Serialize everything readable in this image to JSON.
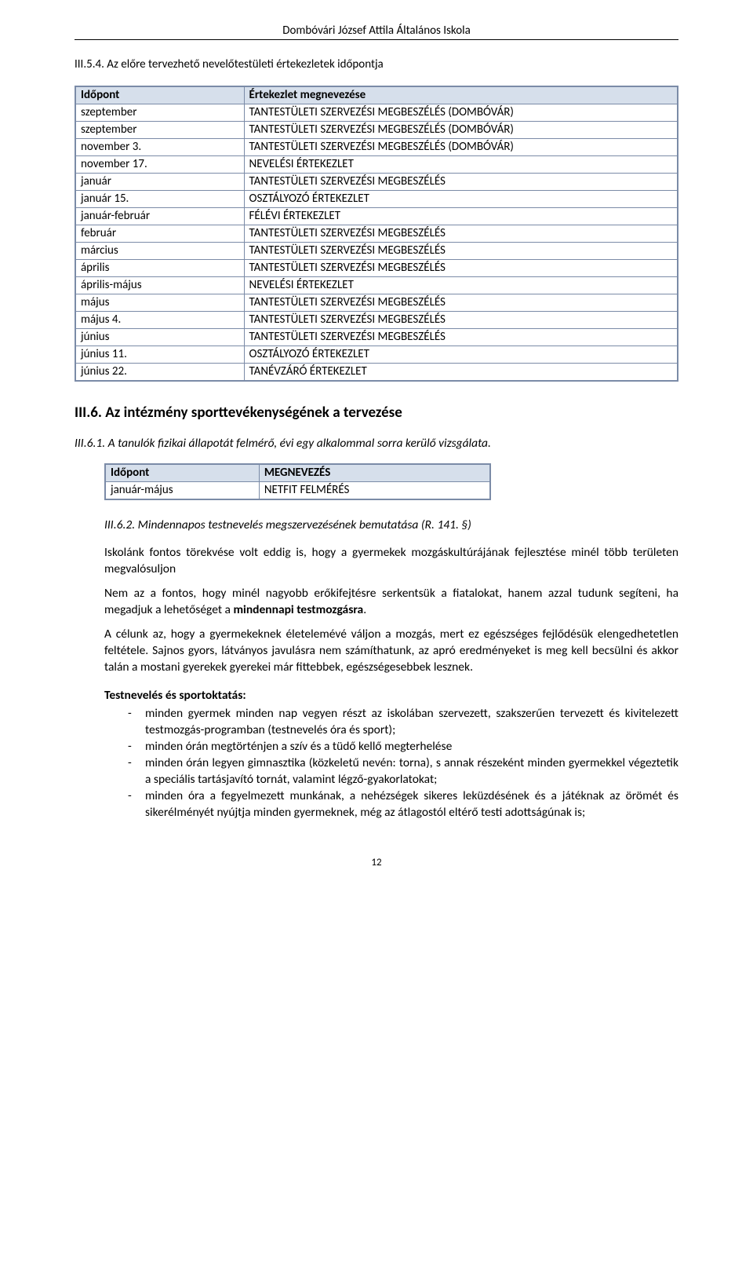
{
  "header": "Dombóvári József Attila Általános Iskola",
  "section_5_4": {
    "heading": "III.5.4. Az előre tervezhető nevelőtestületi értekezletek időpontja",
    "table": {
      "columns": [
        "Időpont",
        "Értekezlet megnevezése"
      ],
      "col1_width": "28%",
      "col2_width": "72%",
      "rows": [
        [
          "szeptember",
          "TANTESTÜLETI SZERVEZÉSI MEGBESZÉLÉS (DOMBÓVÁR)"
        ],
        [
          "szeptember",
          "TANTESTÜLETI SZERVEZÉSI MEGBESZÉLÉS (DOMBÓVÁR)"
        ],
        [
          "november 3.",
          "TANTESTÜLETI SZERVEZÉSI MEGBESZÉLÉS (DOMBÓVÁR)"
        ],
        [
          "november 17.",
          "NEVELÉSI ÉRTEKEZLET"
        ],
        [
          "január",
          "TANTESTÜLETI SZERVEZÉSI MEGBESZÉLÉS"
        ],
        [
          "január 15.",
          "OSZTÁLYOZÓ ÉRTEKEZLET"
        ],
        [
          "január-február",
          "FÉLÉVI ÉRTEKEZLET"
        ],
        [
          "február",
          "TANTESTÜLETI SZERVEZÉSI MEGBESZÉLÉS"
        ],
        [
          "március",
          "TANTESTÜLETI SZERVEZÉSI MEGBESZÉLÉS"
        ],
        [
          "április",
          "TANTESTÜLETI SZERVEZÉSI MEGBESZÉLÉS"
        ],
        [
          "április-május",
          "NEVELÉSI ÉRTEKEZLET"
        ],
        [
          "május",
          "TANTESTÜLETI SZERVEZÉSI MEGBESZÉLÉS"
        ],
        [
          "május 4.",
          "TANTESTÜLETI SZERVEZÉSI MEGBESZÉLÉS"
        ],
        [
          "június",
          "TANTESTÜLETI SZERVEZÉSI MEGBESZÉLÉS"
        ],
        [
          "június 11.",
          "OSZTÁLYOZÓ ÉRTEKEZLET"
        ],
        [
          "június 22.",
          "TANÉVZÁRÓ ÉRTEKEZLET"
        ]
      ]
    }
  },
  "section_6": {
    "heading": "III.6. Az intézmény sporttevékenységének a tervezése"
  },
  "section_6_1": {
    "heading": "III.6.1. A tanulók fizikai állapotát felmérő, évi egy alkalommal sorra kerülő vizsgálata.",
    "table": {
      "columns": [
        "Időpont",
        "MEGNEVEZÉS"
      ],
      "rows": [
        [
          "január-május",
          "NETFIT FELMÉRÉS"
        ]
      ]
    }
  },
  "section_6_2": {
    "heading": "III.6.2. Mindennapos testnevelés megszervezésének bemutatása (R. 141. §)",
    "para1": "Iskolánk fontos törekvése volt eddig is, hogy a gyermekek mozgáskultúrájának fejlesztése minél több területen megvalósuljon",
    "para2_pre": "Nem az a fontos, hogy minél nagyobb erőkifejtésre serkentsük a fiatalokat, hanem azzal tudunk segíteni, ha megadjuk a lehetőséget a ",
    "para2_bold": "mindennapi testmozgásra",
    "para2_post": ".",
    "para3": "A célunk az, hogy a gyermekeknek életelemévé váljon a mozgás, mert ez egészséges fejlődésük elengedhetetlen feltétele. Sajnos gyors, látványos javulásra nem számíthatunk, az apró eredményeket is meg kell becsülni és akkor talán a mostani gyerekek gyerekei már fittebbek, egészségesebbek lesznek.",
    "sport_heading": "Testnevelés és sportoktatás:",
    "bullets": [
      "minden gyermek minden nap vegyen részt az iskolában szervezett, szakszerűen tervezett és kivitelezett testmozgás-programban (testnevelés óra és sport);",
      "minden órán megtörténjen a szív és a tüdő kellő megterhelése",
      "minden órán legyen gimnasztika (közkeletű nevén: torna), s annak részeként minden gyermekkel végeztetik a speciális tartásjavító tornát, valamint légző-gyakorlatokat;",
      "minden óra a fegyelmezett munkának, a nehézségek sikeres leküzdésének és a játéknak az örömét és sikerélményét nyújtja minden gyermeknek, még az átlagostól eltérő testi adottságúnak is;"
    ]
  },
  "page_number": "12"
}
